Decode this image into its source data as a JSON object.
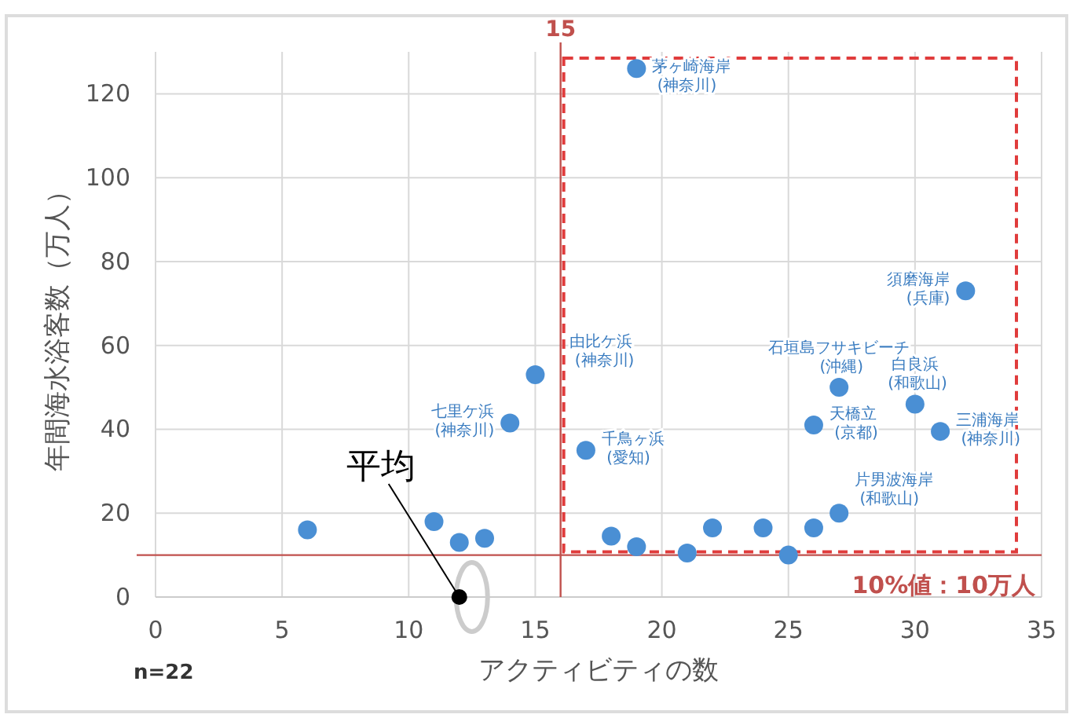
{
  "chart_data": {
    "type": "scatter",
    "xlabel": "アクティビティの数",
    "ylabel": "年間海水浴客数（万人）",
    "x": [
      6,
      11,
      12,
      13,
      14,
      15,
      17,
      18,
      19,
      19,
      21,
      22,
      24,
      25,
      26,
      26,
      27,
      27,
      30,
      31,
      32
    ],
    "values": [
      16,
      18,
      13,
      14,
      41.5,
      53,
      35,
      14.5,
      126,
      12,
      10.5,
      16.5,
      16.5,
      10,
      16.5,
      41,
      20,
      50,
      46,
      39.5,
      73
    ],
    "color": "#4a8fd4",
    "marker": "circle",
    "xlim": [
      0,
      35
    ],
    "ylim": [
      0,
      130
    ],
    "xticks": [
      0,
      5,
      10,
      15,
      20,
      25,
      30,
      35
    ],
    "yticks": [
      0,
      20,
      40,
      60,
      80,
      100,
      120
    ],
    "grid": true,
    "ref_lines": [
      {
        "axis": "x",
        "value": 16,
        "color": "#c0504d"
      },
      {
        "axis": "y",
        "value": 10,
        "label": "10%値：10万人",
        "color": "#c0504d"
      }
    ],
    "annotations": [
      {
        "text": "茅ヶ崎海岸 (神奈川)",
        "x": 19,
        "y": 126
      },
      {
        "text": "須磨海岸 (兵庫)",
        "x": 32,
        "y": 73
      },
      {
        "text": "石垣島フサキビーチ (沖縄)",
        "x": 27,
        "y": 50
      },
      {
        "text": "白良浜 (和歌山)",
        "x": 30,
        "y": 46
      },
      {
        "text": "三浦海岸 (神奈川)",
        "x": 31,
        "y": 39.5
      },
      {
        "text": "天橋立 (京都)",
        "x": 26,
        "y": 41
      },
      {
        "text": "片男波海岸 (和歌山)",
        "x": 27,
        "y": 20
      },
      {
        "text": "千鳥ヶ浜 (愛知)",
        "x": 17,
        "y": 35
      },
      {
        "text": "由比ケ浜 (神奈川)",
        "x": 15,
        "y": 53
      },
      {
        "text": "七里ケ浜 (神奈川)",
        "x": 14,
        "y": 41.5
      },
      {
        "text": "平均",
        "x": 12,
        "y": 0
      },
      "n=22",
      "15"
    ]
  }
}
